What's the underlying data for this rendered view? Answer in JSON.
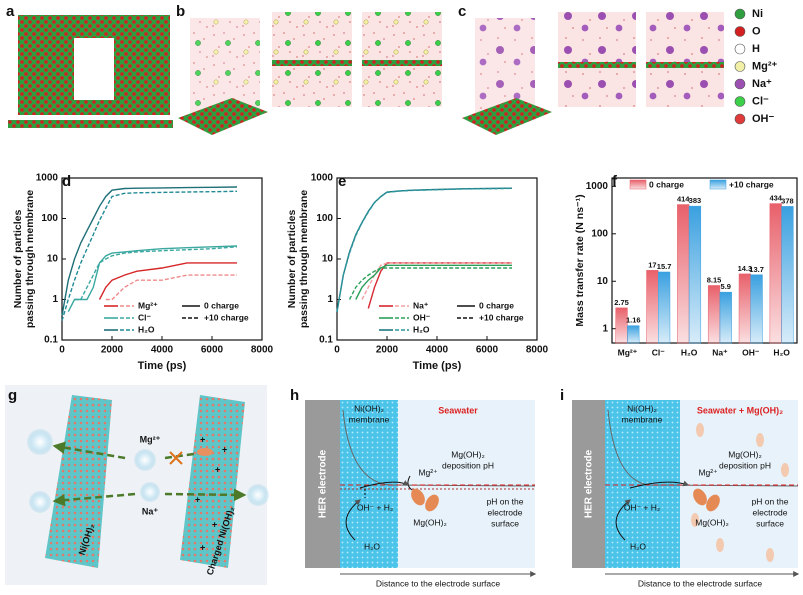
{
  "panel_labels": [
    "a",
    "b",
    "c",
    "d",
    "e",
    "f",
    "g",
    "h",
    "i"
  ],
  "atom_legend": [
    {
      "label": "Ni",
      "color": "#2e9e3e"
    },
    {
      "label": "O",
      "color": "#d21f1f"
    },
    {
      "label": "H",
      "color": "#ffffff"
    },
    {
      "label": "Mg²⁺",
      "color": "#f2efa6"
    },
    {
      "label": "Na⁺",
      "color": "#9b4fb0"
    },
    {
      "label": "Cl⁻",
      "color": "#3ccf4a"
    },
    {
      "label": "OH⁻",
      "color": "#e03a3a"
    }
  ],
  "chart_data": [
    {
      "type": "line",
      "log_y": true,
      "x_label": "Time (ps)",
      "y_label": [
        "Number of particles",
        "passing through membrane"
      ],
      "xlim": [
        0,
        8000
      ],
      "xticks": [
        0,
        2000,
        4000,
        6000,
        8000
      ],
      "ylim": [
        0.1,
        1000
      ],
      "yticks": [
        0.1,
        1,
        10,
        100,
        1000
      ],
      "legend_styles": [
        "0 charge",
        "+10 charge"
      ],
      "x": [
        0,
        250,
        500,
        750,
        1000,
        1250,
        1500,
        1750,
        2000,
        2500,
        3000,
        4000,
        5000,
        6000,
        7000
      ],
      "series": [
        {
          "name": "Mg²⁺",
          "dashed": false,
          "color": "#d62728",
          "values": [
            null,
            null,
            null,
            null,
            null,
            null,
            1,
            2,
            3,
            4,
            5,
            6,
            8,
            8,
            8
          ]
        },
        {
          "name": "Mg²⁺",
          "dashed": true,
          "color": "#f08a8a",
          "values": [
            null,
            null,
            null,
            null,
            null,
            null,
            null,
            1,
            1,
            2,
            3,
            3,
            4,
            4,
            4
          ]
        },
        {
          "name": "Cl⁻",
          "dashed": false,
          "color": "#3aa8a0",
          "values": [
            null,
            0.5,
            1,
            1,
            1,
            2,
            8,
            12,
            14,
            15,
            16,
            18,
            19,
            20,
            21
          ]
        },
        {
          "name": "Cl⁻",
          "dashed": true,
          "color": "#3aa8a0",
          "values": [
            null,
            null,
            1,
            1,
            2,
            4,
            8,
            10,
            12,
            14,
            15,
            16,
            17,
            18,
            20
          ]
        },
        {
          "name": "H₂O",
          "dashed": false,
          "color": "#1f6f78",
          "values": [
            0.4,
            3,
            10,
            25,
            50,
            100,
            200,
            350,
            500,
            550,
            560,
            570,
            580,
            590,
            600
          ]
        },
        {
          "name": "H₂O",
          "dashed": true,
          "color": "#1f8a95",
          "values": [
            0.3,
            1,
            3,
            8,
            18,
            40,
            90,
            180,
            350,
            420,
            430,
            440,
            450,
            460,
            470
          ]
        }
      ]
    },
    {
      "type": "line",
      "log_y": true,
      "x_label": "Time (ps)",
      "y_label": [
        "Number of particles",
        "passing through membrane"
      ],
      "xlim": [
        0,
        8000
      ],
      "xticks": [
        0,
        2000,
        4000,
        6000,
        8000
      ],
      "ylim": [
        0.1,
        1000
      ],
      "yticks": [
        0.1,
        1,
        10,
        100,
        1000
      ],
      "legend_styles": [
        "0 charge",
        "+10 charge"
      ],
      "x": [
        0,
        250,
        500,
        750,
        1000,
        1250,
        1500,
        1750,
        2000,
        2500,
        3000,
        4000,
        5000,
        6000,
        7000
      ],
      "series": [
        {
          "name": "Na⁺",
          "dashed": false,
          "color": "#d62830",
          "values": [
            null,
            null,
            null,
            null,
            null,
            0.6,
            2,
            5,
            8,
            8,
            8,
            8,
            8,
            8,
            8
          ]
        },
        {
          "name": "Na⁺",
          "dashed": true,
          "color": "#f4a0a0",
          "values": [
            null,
            null,
            null,
            null,
            1,
            2,
            4,
            7,
            8,
            8,
            8,
            8,
            8,
            8,
            8
          ]
        },
        {
          "name": "OH⁻",
          "dashed": false,
          "color": "#2ca05a",
          "values": [
            null,
            null,
            null,
            1,
            2,
            3,
            4,
            6,
            7,
            7,
            7,
            7,
            7,
            7,
            7
          ]
        },
        {
          "name": "OH⁻",
          "dashed": true,
          "color": "#2ca05a",
          "values": [
            null,
            null,
            1,
            2,
            3,
            4,
            5,
            6,
            6,
            6,
            6,
            6,
            6,
            6,
            6
          ]
        },
        {
          "name": "H₂O",
          "dashed": false,
          "color": "#1f7a80",
          "values": [
            0.5,
            4,
            15,
            40,
            80,
            150,
            250,
            350,
            450,
            480,
            500,
            520,
            540,
            550,
            560
          ]
        },
        {
          "name": "H₂O",
          "dashed": true,
          "color": "#2a97a0",
          "values": [
            0.5,
            4,
            14,
            38,
            78,
            145,
            245,
            345,
            440,
            475,
            495,
            515,
            535,
            545,
            555
          ]
        }
      ]
    },
    {
      "type": "bar",
      "log_y": true,
      "y_label": "Mass transfer rate (N ns⁻¹)",
      "ylim": [
        0.5,
        1500
      ],
      "yticks": [
        1,
        10,
        100,
        1000
      ],
      "categories": [
        "Mg²⁺",
        "Cl⁻",
        "H₂O",
        "Na⁺",
        "OH⁻",
        "H₂O"
      ],
      "series": [
        {
          "name": "0 charge",
          "color": "#e8606a",
          "values": [
            2.75,
            17,
            414,
            8.15,
            14.3,
            434
          ]
        },
        {
          "name": "+10 charge",
          "color": "#3aa0e0",
          "values": [
            1.16,
            15.7,
            383,
            5.9,
            13.7,
            378
          ]
        }
      ]
    }
  ],
  "diagram_g": {
    "mg": "Mg²⁺",
    "na": "Na⁺",
    "left": "Ni(OH)₂",
    "right": "Charged Ni(OH)₂"
  },
  "diagram_h": {
    "electrode": "HER electrode",
    "membrane": [
      "Ni(OH)₂",
      "membrane"
    ],
    "medium": "Seawater",
    "deposition": [
      "Mg(OH)₂",
      "deposition pH"
    ],
    "ion": "Mg²⁺",
    "reaction": "OH⁻ + H₂",
    "water": "H₂O",
    "precipitate": "Mg(OH)₂",
    "surface": [
      "pH on the",
      "electrode",
      "surface"
    ],
    "axis": "Distance to the electrode surface"
  },
  "diagram_i": {
    "electrode": "HER electrode",
    "membrane": [
      "Ni(OH)₂",
      "membrane"
    ],
    "medium": "Seawater + Mg(OH)₂",
    "deposition": [
      "Mg(OH)₂",
      "deposition pH"
    ],
    "ion": "Mg²⁺",
    "reaction": "OH⁻ + H₂",
    "water": "H₂O",
    "precipitate": "Mg(OH)₂",
    "surface": [
      "pH on the",
      "electrode",
      "surface"
    ],
    "axis": "Distance to the electrode surface"
  }
}
